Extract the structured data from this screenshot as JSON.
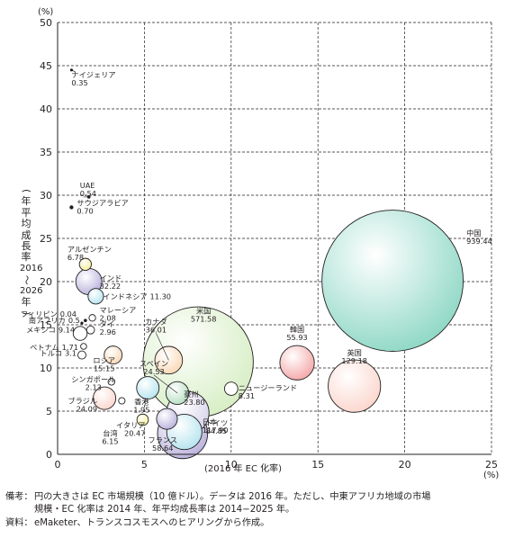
{
  "chart_data": {
    "type": "scatter",
    "x_unit": "(%)",
    "y_unit": "(%)",
    "xlabel": "(2016 年 EC 化率)",
    "ylabel": "(年平均成長率 2016〜2026 年)",
    "ylabel_chars": [
      "(",
      "年",
      "平",
      "均",
      "成",
      "長",
      "率",
      "2016",
      "〜",
      "2026",
      "年",
      ")"
    ],
    "xlim": [
      0,
      25
    ],
    "ylim": [
      0,
      50
    ],
    "x_ticks": [
      "0",
      "5",
      "10",
      "15",
      "20",
      "25"
    ],
    "y_ticks": [
      "0",
      "5",
      "10",
      "15",
      "20",
      "25",
      "30",
      "35",
      "40",
      "45",
      "50"
    ],
    "grid": true,
    "points": [
      {
        "name": "ナイジェリア",
        "value": "0.35",
        "x": 0.8,
        "y": 44.5,
        "color": "#231f20"
      },
      {
        "name": "UAE",
        "value": "0.54",
        "x": 1.8,
        "y": 29.8,
        "color": "#231f20"
      },
      {
        "name": "サウジアラビア",
        "value": "0.70",
        "x": 0.8,
        "y": 28.6,
        "color": "#231f20"
      },
      {
        "name": "アルゼンチン",
        "value": "6.78",
        "x": 1.6,
        "y": 22.0,
        "color": "#f5ef9a"
      },
      {
        "name": "インド",
        "value": "32.22",
        "x": 1.8,
        "y": 20.0,
        "color": "#b9b1dc"
      },
      {
        "name": "インドネシア",
        "value": "11.30",
        "x": 2.2,
        "y": 18.3,
        "color": "#b6e4ef"
      },
      {
        "name": "フィリピン",
        "value": "0.04",
        "x": 1.4,
        "y": 15.2,
        "color": "#ffffff"
      },
      {
        "name": "南アフリカ",
        "value": "0.5",
        "x": 1.6,
        "y": 15.5,
        "color": "#ffffff"
      },
      {
        "name": "マレーシア",
        "value": "2.08",
        "x": 2.0,
        "y": 15.8,
        "color": "#ffffff"
      },
      {
        "name": "タイ",
        "value": "2.96",
        "x": 1.9,
        "y": 14.4,
        "color": "#ffffff"
      },
      {
        "name": "メキシコ",
        "value": "9.14",
        "x": 1.3,
        "y": 14.0,
        "color": "#ffffff"
      },
      {
        "name": "ベトナム",
        "value": "1.71",
        "x": 1.5,
        "y": 12.5,
        "color": "#ffffff"
      },
      {
        "name": "トルコ",
        "value": "3.1",
        "x": 1.4,
        "y": 11.5,
        "color": "#ffffff"
      },
      {
        "name": "ロシア",
        "value": "15.15",
        "x": 3.2,
        "y": 11.5,
        "color": "#f9d8b5"
      },
      {
        "name": "カナダ",
        "value": "36.01",
        "x": 6.4,
        "y": 10.9,
        "color": "#f9d8b5"
      },
      {
        "name": "スペイン",
        "value": "24.53",
        "x": 6.9,
        "y": 7.1,
        "color": "#b6dfc2"
      },
      {
        "name": "シンガポール",
        "value": "2.13",
        "x": 3.1,
        "y": 8.4,
        "color": "#ffffff"
      },
      {
        "name": "米国",
        "value": "571.58",
        "x": 8.1,
        "y": 10.7,
        "color": "#d7eec4"
      },
      {
        "name": "ニュージーランド",
        "value": "8.31",
        "x": 10.0,
        "y": 7.6,
        "color": "#ffffff"
      },
      {
        "name": "豪州",
        "value": "23.80",
        "x": 5.2,
        "y": 7.7,
        "color": "#b6e4ef"
      },
      {
        "name": "ブラジル",
        "value": "24.09",
        "x": 2.7,
        "y": 6.5,
        "color": "#fbd6cd"
      },
      {
        "name": "香港",
        "value": "1.95",
        "x": 3.7,
        "y": 6.2,
        "color": "#ffffff"
      },
      {
        "name": "ドイツ",
        "value": "84.85",
        "x": 7.5,
        "y": 4.8,
        "color": "#d8d3ec"
      },
      {
        "name": "台湾",
        "value": "6.15",
        "x": 4.9,
        "y": 4.0,
        "color": "#f5ef9a"
      },
      {
        "name": "イタリア",
        "value": "20.47",
        "x": 6.3,
        "y": 4.1,
        "color": "#b9b1dc"
      },
      {
        "name": "フランス",
        "value": "58.64",
        "x": 7.3,
        "y": 2.6,
        "color": "#b6e4ef"
      },
      {
        "name": "日本",
        "value": "117.90",
        "x": 7.2,
        "y": 2.4,
        "color": "#b9b1dc"
      },
      {
        "name": "韓国",
        "value": "55.93",
        "x": 13.8,
        "y": 10.6,
        "color": "#f4a7a7"
      },
      {
        "name": "英国",
        "value": "129.18",
        "x": 17.1,
        "y": 7.9,
        "color": "#fbd6cd"
      },
      {
        "name": "中国",
        "value": "939.44",
        "x": 19.3,
        "y": 20.1,
        "color": "#8fd8c6"
      }
    ]
  },
  "notes": [
    {
      "key": "備考：",
      "text": "円の大きさは EC 市場規模（10 億ドル）。データは 2016 年。ただし、中東アフリカ地域の市場"
    },
    {
      "key": "",
      "text": "規模・EC 化率は 2014 年、年平均成長率は 2014−2025 年。"
    },
    {
      "key": "資料：",
      "text": "eMaketer、トランスコスモスへのヒアリングから作成。"
    }
  ]
}
